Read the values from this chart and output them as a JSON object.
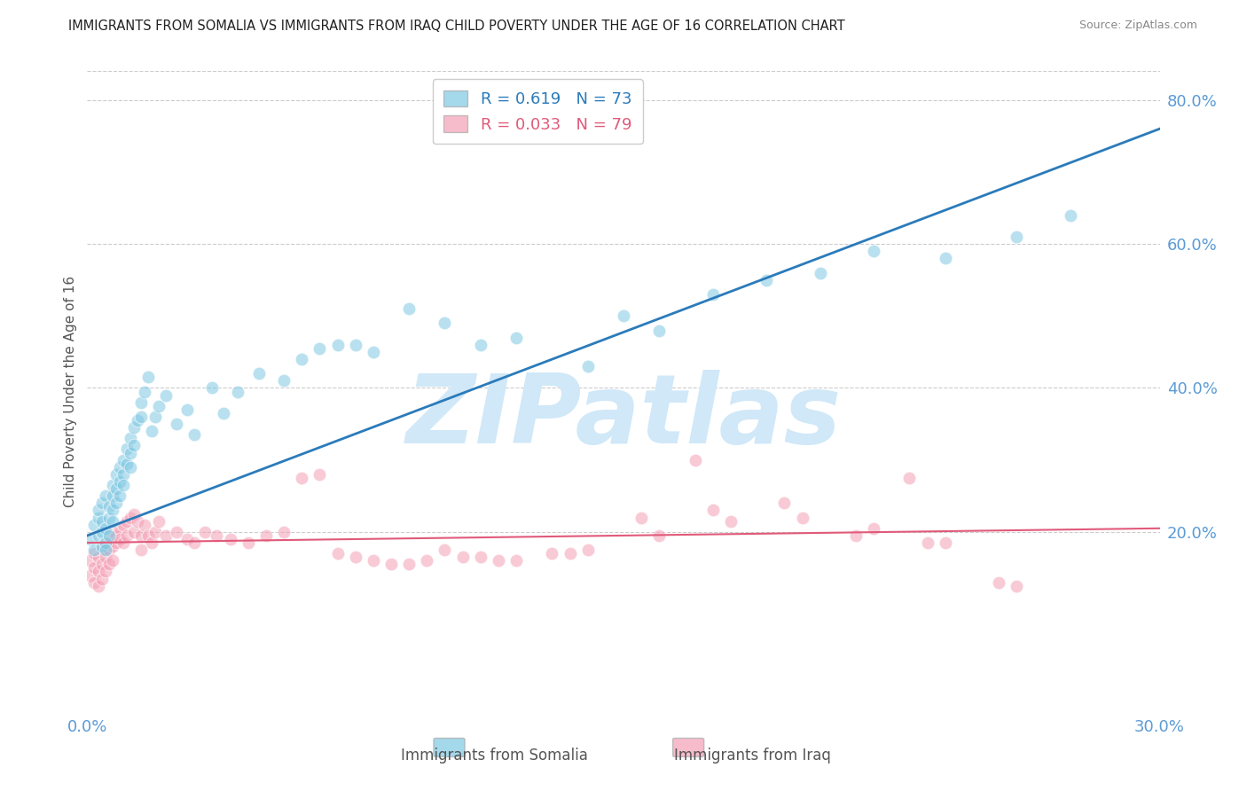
{
  "title": "IMMIGRANTS FROM SOMALIA VS IMMIGRANTS FROM IRAQ CHILD POVERTY UNDER THE AGE OF 16 CORRELATION CHART",
  "source": "Source: ZipAtlas.com",
  "ylabel": "Child Poverty Under the Age of 16",
  "x_min": 0.0,
  "x_max": 0.3,
  "y_min": -0.05,
  "y_max": 0.84,
  "y_ticks": [
    0.2,
    0.4,
    0.6,
    0.8
  ],
  "y_tick_labels": [
    "20.0%",
    "40.0%",
    "60.0%",
    "80.0%"
  ],
  "x_ticks": [
    0.0,
    0.05,
    0.1,
    0.15,
    0.2,
    0.25,
    0.3
  ],
  "x_tick_labels": [
    "0.0%",
    "",
    "",
    "",
    "",
    "",
    "30.0%"
  ],
  "somalia_R": 0.619,
  "somalia_N": 73,
  "iraq_R": 0.033,
  "iraq_N": 79,
  "somalia_color": "#7ec8e3",
  "iraq_color": "#f4a0b5",
  "somalia_line_color": "#2b7bba",
  "iraq_line_color": "#e05a7a",
  "background_color": "#ffffff",
  "grid_color": "#cccccc",
  "title_color": "#222222",
  "source_color": "#888888",
  "axis_tick_color": "#5b9bd5",
  "ylabel_color": "#555555",
  "watermark_text": "ZIPatlas",
  "watermark_color": "#d0e8f8",
  "legend_label_somalia": "Immigrants from Somalia",
  "legend_label_iraq": "Immigrants from Iraq",
  "somalia_scatter_x": [
    0.001,
    0.002,
    0.002,
    0.003,
    0.003,
    0.003,
    0.004,
    0.004,
    0.004,
    0.004,
    0.005,
    0.005,
    0.005,
    0.005,
    0.006,
    0.006,
    0.006,
    0.007,
    0.007,
    0.007,
    0.007,
    0.008,
    0.008,
    0.008,
    0.009,
    0.009,
    0.009,
    0.01,
    0.01,
    0.01,
    0.011,
    0.011,
    0.012,
    0.012,
    0.012,
    0.013,
    0.013,
    0.014,
    0.015,
    0.015,
    0.016,
    0.017,
    0.018,
    0.019,
    0.02,
    0.022,
    0.025,
    0.028,
    0.03,
    0.035,
    0.038,
    0.042,
    0.048,
    0.055,
    0.06,
    0.065,
    0.07,
    0.075,
    0.08,
    0.09,
    0.1,
    0.11,
    0.12,
    0.14,
    0.15,
    0.16,
    0.175,
    0.19,
    0.205,
    0.22,
    0.24,
    0.26,
    0.275
  ],
  "somalia_scatter_y": [
    0.19,
    0.21,
    0.175,
    0.22,
    0.195,
    0.23,
    0.215,
    0.2,
    0.18,
    0.24,
    0.25,
    0.205,
    0.185,
    0.175,
    0.235,
    0.22,
    0.195,
    0.265,
    0.25,
    0.23,
    0.215,
    0.28,
    0.26,
    0.24,
    0.29,
    0.27,
    0.25,
    0.3,
    0.28,
    0.265,
    0.315,
    0.295,
    0.33,
    0.31,
    0.29,
    0.345,
    0.32,
    0.355,
    0.38,
    0.36,
    0.395,
    0.415,
    0.34,
    0.36,
    0.375,
    0.39,
    0.35,
    0.37,
    0.335,
    0.4,
    0.365,
    0.395,
    0.42,
    0.41,
    0.44,
    0.455,
    0.46,
    0.46,
    0.45,
    0.51,
    0.49,
    0.46,
    0.47,
    0.43,
    0.5,
    0.48,
    0.53,
    0.55,
    0.56,
    0.59,
    0.58,
    0.61,
    0.64
  ],
  "iraq_scatter_x": [
    0.001,
    0.001,
    0.002,
    0.002,
    0.002,
    0.003,
    0.003,
    0.003,
    0.004,
    0.004,
    0.004,
    0.005,
    0.005,
    0.005,
    0.006,
    0.006,
    0.006,
    0.007,
    0.007,
    0.007,
    0.008,
    0.008,
    0.009,
    0.009,
    0.01,
    0.01,
    0.011,
    0.011,
    0.012,
    0.013,
    0.013,
    0.014,
    0.015,
    0.015,
    0.016,
    0.017,
    0.018,
    0.019,
    0.02,
    0.022,
    0.025,
    0.028,
    0.03,
    0.033,
    0.036,
    0.04,
    0.045,
    0.05,
    0.055,
    0.06,
    0.07,
    0.08,
    0.09,
    0.1,
    0.11,
    0.12,
    0.13,
    0.14,
    0.16,
    0.18,
    0.2,
    0.22,
    0.24,
    0.26,
    0.065,
    0.075,
    0.085,
    0.095,
    0.105,
    0.115,
    0.135,
    0.155,
    0.175,
    0.195,
    0.215,
    0.235,
    0.255,
    0.17,
    0.23
  ],
  "iraq_scatter_y": [
    0.16,
    0.14,
    0.17,
    0.15,
    0.13,
    0.165,
    0.145,
    0.125,
    0.175,
    0.155,
    0.135,
    0.185,
    0.165,
    0.145,
    0.19,
    0.175,
    0.155,
    0.2,
    0.18,
    0.16,
    0.195,
    0.185,
    0.205,
    0.19,
    0.21,
    0.185,
    0.215,
    0.195,
    0.22,
    0.225,
    0.2,
    0.215,
    0.195,
    0.175,
    0.21,
    0.195,
    0.185,
    0.2,
    0.215,
    0.195,
    0.2,
    0.19,
    0.185,
    0.2,
    0.195,
    0.19,
    0.185,
    0.195,
    0.2,
    0.275,
    0.17,
    0.16,
    0.155,
    0.175,
    0.165,
    0.16,
    0.17,
    0.175,
    0.195,
    0.215,
    0.22,
    0.205,
    0.185,
    0.125,
    0.28,
    0.165,
    0.155,
    0.16,
    0.165,
    0.16,
    0.17,
    0.22,
    0.23,
    0.24,
    0.195,
    0.185,
    0.13,
    0.3,
    0.275
  ],
  "somalia_line_x0": 0.0,
  "somalia_line_y0": 0.195,
  "somalia_line_x1": 0.3,
  "somalia_line_y1": 0.76,
  "iraq_line_x0": 0.0,
  "iraq_line_y0": 0.185,
  "iraq_line_x1": 0.3,
  "iraq_line_y1": 0.205
}
